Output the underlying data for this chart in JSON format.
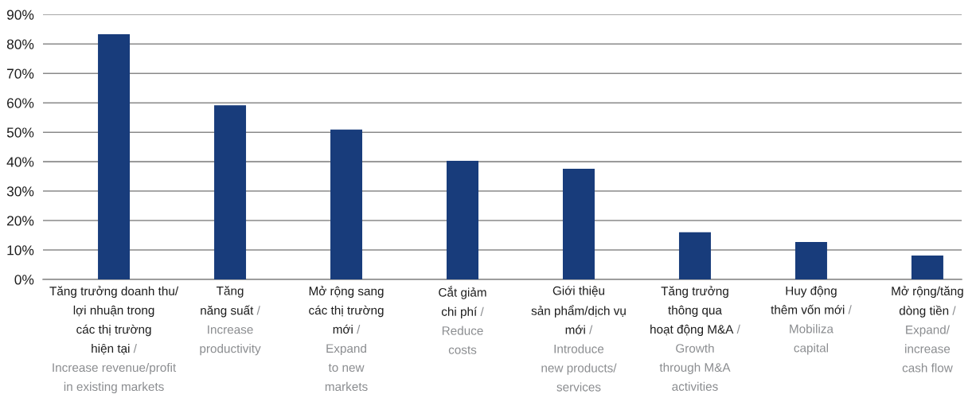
{
  "chart_data": {
    "type": "bar",
    "categories": [
      "Tăng trưởng doanh thu/\nlợi nhuận trong\ncác thị trường\nhiện tại /\nIncrease revenue/profit\nin existing markets",
      "Tăng\nnăng suất /\nIncrease\nproductivity",
      "Mở rộng sang\ncác thị trường\nmới /\nExpand\nto new\nmarkets",
      "Cắt giảm\nchi phí /\nReduce\ncosts",
      "Giới thiệu\nsản phẩm/dịch vụ\nmới /\nIntroduce\nnew products/\nservices",
      "Tăng trưởng\nthông qua\nhoạt động M&A /\nGrowth\nthrough M&A\nactivities",
      "Huy động\nthêm vốn mới /\nMobiliza\ncapital",
      "Mở rộng/tăng\ndòng tiền /\nExpand/\nincrease\ncash flow"
    ],
    "values": [
      83.3,
      59.2,
      50.9,
      40.3,
      37.6,
      16.0,
      12.7,
      8.1
    ],
    "color": "#183c7b",
    "ylim": [
      0,
      90
    ],
    "yticks": [
      {
        "value": 0,
        "label": "0%"
      },
      {
        "value": 10,
        "label": "10%"
      },
      {
        "value": 20,
        "label": "20%"
      },
      {
        "value": 30,
        "label": "30%"
      },
      {
        "value": 40,
        "label": "40%"
      },
      {
        "value": 50,
        "label": "50%"
      },
      {
        "value": 60,
        "label": "60%"
      },
      {
        "value": 70,
        "label": "70%"
      },
      {
        "value": 80,
        "label": "80%"
      },
      {
        "value": 90,
        "label": "90%"
      }
    ],
    "grid": "y"
  }
}
